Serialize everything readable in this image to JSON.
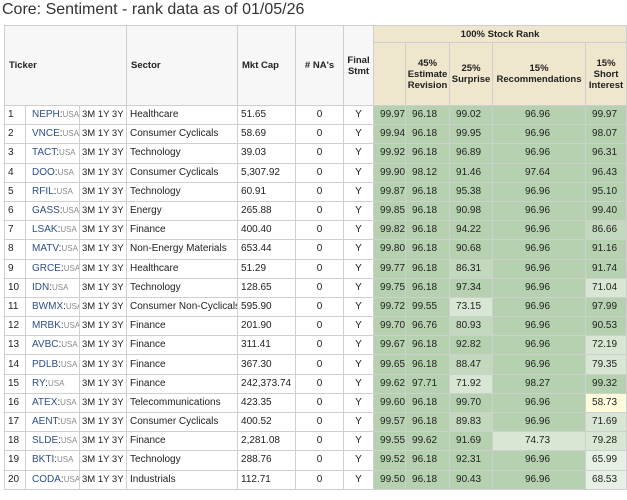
{
  "title": "Core: Sentiment - rank data as of 01/05/26",
  "headers": {
    "ticker": "Ticker",
    "sector": "Sector",
    "mktcap": "Mkt Cap",
    "nas": "# NA's",
    "final": "Final Stmt",
    "rank_group": "100% Stock Rank",
    "est": "45% Estimate Revision",
    "surprise": "25% Surprise",
    "recs": "15% Recommendations",
    "short": "15% Short Interest"
  },
  "periods": "3M 1Y 3Y",
  "country": "USA",
  "rows": [
    {
      "n": "1",
      "ticker": "NEPH",
      "sector": "Healthcare",
      "cap": "51.65",
      "na": "0",
      "final": "Y",
      "rank": "99.97",
      "est": "96.18",
      "sur": "99.02",
      "rec": "96.96",
      "si": "99.97"
    },
    {
      "n": "2",
      "ticker": "VNCE",
      "sector": "Consumer Cyclicals",
      "cap": "58.69",
      "na": "0",
      "final": "Y",
      "rank": "99.94",
      "est": "96.18",
      "sur": "99.95",
      "rec": "96.96",
      "si": "98.07"
    },
    {
      "n": "3",
      "ticker": "TACT",
      "sector": "Technology",
      "cap": "39.03",
      "na": "0",
      "final": "Y",
      "rank": "99.92",
      "est": "96.18",
      "sur": "96.89",
      "rec": "96.96",
      "si": "96.31"
    },
    {
      "n": "4",
      "ticker": "DOO",
      "sector": "Consumer Cyclicals",
      "cap": "5,307.92",
      "na": "0",
      "final": "Y",
      "rank": "99.90",
      "est": "98.12",
      "sur": "91.46",
      "rec": "97.64",
      "si": "96.43"
    },
    {
      "n": "5",
      "ticker": "RFIL",
      "sector": "Technology",
      "cap": "60.91",
      "na": "0",
      "final": "Y",
      "rank": "99.87",
      "est": "96.18",
      "sur": "95.38",
      "rec": "96.96",
      "si": "95.10"
    },
    {
      "n": "6",
      "ticker": "GASS",
      "sector": "Energy",
      "cap": "265.88",
      "na": "0",
      "final": "Y",
      "rank": "99.85",
      "est": "96.18",
      "sur": "90.98",
      "rec": "96.96",
      "si": "99.40"
    },
    {
      "n": "7",
      "ticker": "LSAK",
      "sector": "Finance",
      "cap": "400.40",
      "na": "0",
      "final": "Y",
      "rank": "99.82",
      "est": "96.18",
      "sur": "94.22",
      "rec": "96.96",
      "si": "86.66"
    },
    {
      "n": "8",
      "ticker": "MATV",
      "sector": "Non-Energy Materials",
      "cap": "653.44",
      "na": "0",
      "final": "Y",
      "rank": "99.80",
      "est": "96.18",
      "sur": "90.68",
      "rec": "96.96",
      "si": "91.16"
    },
    {
      "n": "9",
      "ticker": "GRCE",
      "sector": "Healthcare",
      "cap": "51.29",
      "na": "0",
      "final": "Y",
      "rank": "99.77",
      "est": "96.18",
      "sur": "86.31",
      "rec": "96.96",
      "si": "91.74"
    },
    {
      "n": "10",
      "ticker": "IDN",
      "sector": "Technology",
      "cap": "128.65",
      "na": "0",
      "final": "Y",
      "rank": "99.75",
      "est": "96.18",
      "sur": "97.34",
      "rec": "96.96",
      "si": "71.04"
    },
    {
      "n": "11",
      "ticker": "BWMX",
      "sector": "Consumer Non-Cyclicals",
      "cap": "595.90",
      "na": "0",
      "final": "Y",
      "rank": "99.72",
      "est": "99.55",
      "sur": "73.15",
      "rec": "96.96",
      "si": "97.99"
    },
    {
      "n": "12",
      "ticker": "MRBK",
      "sector": "Finance",
      "cap": "201.90",
      "na": "0",
      "final": "Y",
      "rank": "99.70",
      "est": "96.76",
      "sur": "80.93",
      "rec": "96.96",
      "si": "90.53"
    },
    {
      "n": "13",
      "ticker": "AVBC",
      "sector": "Finance",
      "cap": "311.41",
      "na": "0",
      "final": "Y",
      "rank": "99.67",
      "est": "96.18",
      "sur": "92.82",
      "rec": "96.96",
      "si": "72.19"
    },
    {
      "n": "14",
      "ticker": "PDLB",
      "sector": "Finance",
      "cap": "367.30",
      "na": "0",
      "final": "Y",
      "rank": "99.65",
      "est": "96.18",
      "sur": "88.47",
      "rec": "96.96",
      "si": "79.35"
    },
    {
      "n": "15",
      "ticker": "RY",
      "sector": "Finance",
      "cap": "242,373.74",
      "na": "0",
      "final": "Y",
      "rank": "99.62",
      "est": "97.71",
      "sur": "71.92",
      "rec": "98.27",
      "si": "99.32"
    },
    {
      "n": "16",
      "ticker": "ATEX",
      "sector": "Telecommunications",
      "cap": "423.35",
      "na": "0",
      "final": "Y",
      "rank": "99.60",
      "est": "96.18",
      "sur": "99.70",
      "rec": "96.96",
      "si": "58.73"
    },
    {
      "n": "17",
      "ticker": "AENT",
      "sector": "Consumer Cyclicals",
      "cap": "400.52",
      "na": "0",
      "final": "Y",
      "rank": "99.57",
      "est": "96.18",
      "sur": "89.83",
      "rec": "96.96",
      "si": "71.69"
    },
    {
      "n": "18",
      "ticker": "SLDE",
      "sector": "Finance",
      "cap": "2,281.08",
      "na": "0",
      "final": "Y",
      "rank": "99.55",
      "est": "99.62",
      "sur": "91.69",
      "rec": "74.73",
      "si": "79.28"
    },
    {
      "n": "19",
      "ticker": "BKTI",
      "sector": "Technology",
      "cap": "288.76",
      "na": "0",
      "final": "Y",
      "rank": "99.52",
      "est": "96.18",
      "sur": "92.31",
      "rec": "96.96",
      "si": "65.99"
    },
    {
      "n": "20",
      "ticker": "CODA",
      "sector": "Industrials",
      "cap": "112.71",
      "na": "0",
      "final": "Y",
      "rank": "99.50",
      "est": "96.18",
      "sur": "90.43",
      "rec": "96.96",
      "si": "68.53"
    }
  ]
}
